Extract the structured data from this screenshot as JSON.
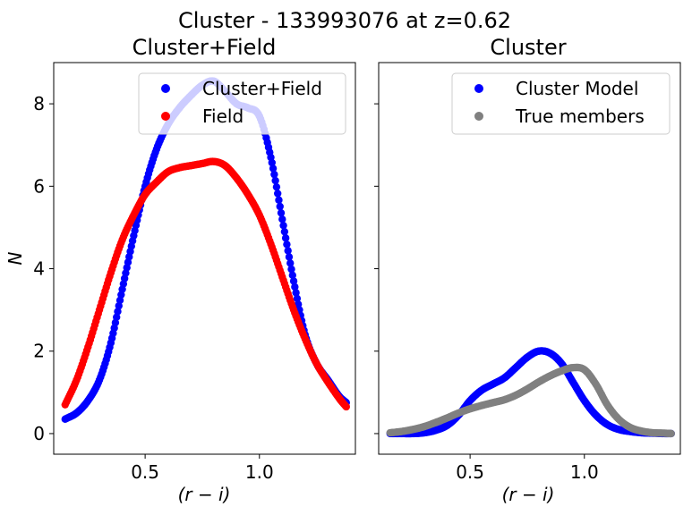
{
  "figure": {
    "title": "Cluster - 133993076 at z=0.62"
  },
  "chart_data": [
    {
      "type": "scatter",
      "title": "Cluster+Field",
      "xlabel": "(r − i)",
      "ylabel": "N",
      "xlim": [
        0.1,
        1.42
      ],
      "ylim": [
        -0.5,
        9.0
      ],
      "xticks": [
        0.5,
        1.0
      ],
      "xtick_labels": [
        "0.5",
        "1.0"
      ],
      "yticks": [
        0,
        2,
        4,
        6,
        8
      ],
      "ytick_labels": [
        "0",
        "2",
        "4",
        "6",
        "8"
      ],
      "legend_position": "top-right",
      "series": [
        {
          "name": "Cluster+Field",
          "color": "#0000ff",
          "x": [
            0.15,
            0.2,
            0.25,
            0.3,
            0.35,
            0.4,
            0.45,
            0.5,
            0.55,
            0.6,
            0.65,
            0.7,
            0.75,
            0.8,
            0.85,
            0.9,
            0.95,
            1.0,
            1.05,
            1.1,
            1.15,
            1.2,
            1.25,
            1.3,
            1.35,
            1.38
          ],
          "y": [
            0.35,
            0.5,
            0.8,
            1.3,
            2.2,
            3.5,
            4.8,
            6.0,
            6.9,
            7.5,
            7.9,
            8.2,
            8.45,
            8.55,
            8.3,
            8.0,
            7.9,
            7.7,
            6.7,
            5.2,
            3.7,
            2.4,
            1.7,
            1.3,
            0.9,
            0.75
          ]
        },
        {
          "name": "Field",
          "color": "#ff0000",
          "x": [
            0.15,
            0.2,
            0.25,
            0.3,
            0.35,
            0.4,
            0.45,
            0.5,
            0.55,
            0.6,
            0.65,
            0.7,
            0.75,
            0.8,
            0.85,
            0.9,
            0.95,
            1.0,
            1.05,
            1.1,
            1.15,
            1.2,
            1.25,
            1.3,
            1.35,
            1.38
          ],
          "y": [
            0.7,
            1.3,
            2.1,
            3.0,
            3.9,
            4.7,
            5.3,
            5.8,
            6.1,
            6.35,
            6.45,
            6.5,
            6.55,
            6.6,
            6.5,
            6.2,
            5.8,
            5.3,
            4.6,
            3.8,
            3.0,
            2.3,
            1.7,
            1.25,
            0.85,
            0.65
          ]
        }
      ]
    },
    {
      "type": "scatter",
      "title": "Cluster",
      "xlabel": "(r − i)",
      "ylabel": "",
      "xlim": [
        0.1,
        1.42
      ],
      "ylim": [
        -0.5,
        9.0
      ],
      "xticks": [
        0.5,
        1.0
      ],
      "xtick_labels": [
        "0.5",
        "1.0"
      ],
      "yticks": [
        0,
        2,
        4,
        6,
        8
      ],
      "ytick_labels": [],
      "legend_position": "top-right",
      "series": [
        {
          "name": "Cluster Model",
          "color": "#0000ff",
          "x": [
            0.15,
            0.2,
            0.25,
            0.3,
            0.35,
            0.4,
            0.45,
            0.5,
            0.55,
            0.6,
            0.65,
            0.7,
            0.75,
            0.8,
            0.85,
            0.9,
            0.95,
            1.0,
            1.05,
            1.1,
            1.15,
            1.2,
            1.25,
            1.3,
            1.35,
            1.38
          ],
          "y": [
            0.0,
            0.0,
            0.0,
            0.02,
            0.08,
            0.2,
            0.45,
            0.8,
            1.05,
            1.2,
            1.35,
            1.6,
            1.85,
            2.0,
            1.95,
            1.7,
            1.25,
            0.8,
            0.45,
            0.22,
            0.1,
            0.05,
            0.02,
            0.01,
            0.0,
            0.0
          ]
        },
        {
          "name": "True members",
          "color": "#808080",
          "x": [
            0.15,
            0.2,
            0.25,
            0.3,
            0.35,
            0.4,
            0.45,
            0.5,
            0.55,
            0.6,
            0.65,
            0.7,
            0.75,
            0.8,
            0.85,
            0.9,
            0.95,
            1.0,
            1.05,
            1.1,
            1.15,
            1.2,
            1.25,
            1.3,
            1.35,
            1.38
          ],
          "y": [
            0.02,
            0.05,
            0.1,
            0.17,
            0.27,
            0.38,
            0.5,
            0.6,
            0.68,
            0.75,
            0.82,
            0.93,
            1.08,
            1.25,
            1.4,
            1.52,
            1.6,
            1.55,
            1.2,
            0.7,
            0.35,
            0.15,
            0.06,
            0.02,
            0.01,
            0.0
          ]
        }
      ]
    }
  ]
}
